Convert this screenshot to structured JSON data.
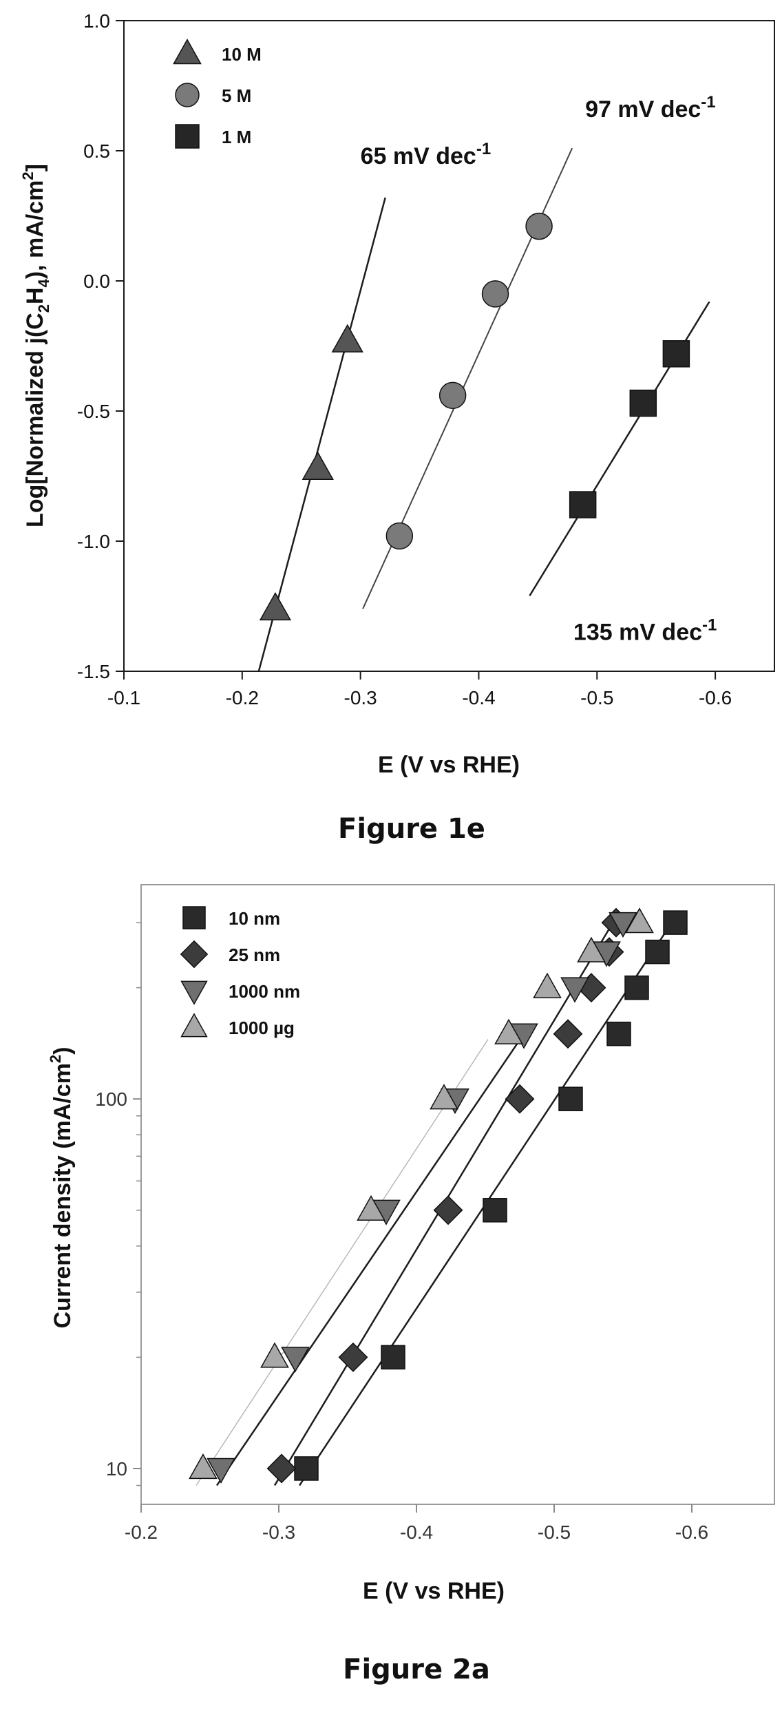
{
  "chart_data": [
    {
      "type": "scatter",
      "figure_caption": "Figure 1e",
      "xlabel": "E (V vs RHE)",
      "ylabel_prefix": "Log[Normalized j(C",
      "ylabel_sub1": "2",
      "ylabel_mid": "H",
      "ylabel_sub2": "4",
      "ylabel_suffix": "), mA/cm",
      "ylabel_sup": "2",
      "ylabel_end": "]",
      "xlim": [
        -0.1,
        -0.65
      ],
      "ylim": [
        -1.5,
        1.0
      ],
      "xticks": [
        -0.1,
        -0.2,
        -0.3,
        -0.4,
        -0.5,
        -0.6
      ],
      "xtick_labels": [
        "-0.1",
        "-0.2",
        "-0.3",
        "-0.4",
        "-0.5",
        "-0.6"
      ],
      "yticks": [
        1.0,
        0.5,
        0.0,
        -0.5,
        -1.0,
        -1.5
      ],
      "ytick_labels": [
        "1.0",
        "0.5",
        "0.0",
        "-0.5",
        "-1.0",
        "-1.5"
      ],
      "legend_position": "top-left",
      "grid": false,
      "series": [
        {
          "name": "10 M",
          "marker": "triangle-up",
          "color": "#555555",
          "x": [
            -0.228,
            -0.264,
            -0.289
          ],
          "y": [
            -1.26,
            -0.72,
            -0.23
          ],
          "fit_x": [
            -0.214,
            -0.321
          ],
          "fit_y": [
            -1.5,
            0.32
          ]
        },
        {
          "name": "5 M",
          "marker": "circle",
          "color": "#7a7a7a",
          "x": [
            -0.333,
            -0.378,
            -0.414,
            -0.451
          ],
          "y": [
            -0.98,
            -0.44,
            -0.05,
            0.21
          ],
          "fit_x": [
            -0.302,
            -0.479
          ],
          "fit_y": [
            -1.26,
            0.51
          ]
        },
        {
          "name": "1 M",
          "marker": "square",
          "color": "#262626",
          "x": [
            -0.488,
            -0.539,
            -0.567
          ],
          "y": [
            -0.86,
            -0.47,
            -0.28
          ],
          "fit_x": [
            -0.443,
            -0.595
          ],
          "fit_y": [
            -1.21,
            -0.08
          ]
        }
      ],
      "annotations": [
        {
          "label": "65 mV dec",
          "sup": "-1",
          "x": -0.3,
          "y": 0.45
        },
        {
          "label": "97 mV dec",
          "sup": "-1",
          "x": -0.49,
          "y": 0.63
        },
        {
          "label": "135 mV dec",
          "sup": "-1",
          "x": -0.48,
          "y": -1.38
        }
      ]
    },
    {
      "type": "scatter",
      "figure_caption": "Figure 2a",
      "xlabel": "E (V vs RHE)",
      "ylabel_prefix": "Current density (mA/cm",
      "ylabel_sup": "2",
      "ylabel_end": ")",
      "yscale": "log",
      "xlim": [
        -0.2,
        -0.66
      ],
      "ylim": [
        8,
        380
      ],
      "xticks": [
        -0.2,
        -0.3,
        -0.4,
        -0.5,
        -0.6
      ],
      "xtick_labels": [
        "-0.2",
        "-0.3",
        "-0.4",
        "-0.5",
        "-0.6"
      ],
      "yticks": [
        10,
        100
      ],
      "ytick_labels": [
        "10",
        "100"
      ],
      "legend_position": "top-left",
      "grid": false,
      "series": [
        {
          "name": "10 nm",
          "marker": "square",
          "color": "#2a2a2a",
          "x": [
            -0.32,
            -0.383,
            -0.457,
            -0.512,
            -0.547,
            -0.56,
            -0.575,
            -0.588
          ],
          "y": [
            10,
            20,
            50,
            100,
            150,
            200,
            250,
            300
          ],
          "fit_x": [
            -0.315,
            -0.588
          ],
          "fit_y": [
            9,
            310
          ]
        },
        {
          "name": "25 nm",
          "marker": "diamond",
          "color": "#3c3c3c",
          "x": [
            -0.302,
            -0.354,
            -0.423,
            -0.475,
            -0.51,
            -0.527,
            -0.54,
            -0.545
          ],
          "y": [
            10,
            20,
            50,
            100,
            150,
            200,
            250,
            300
          ],
          "fit_x": [
            -0.297,
            -0.545
          ],
          "fit_y": [
            9,
            310
          ]
        },
        {
          "name": "1000 nm",
          "marker": "triangle-down",
          "color": "#707070",
          "x": [
            -0.258,
            -0.312,
            -0.378,
            -0.428,
            -0.478,
            -0.515,
            -0.538,
            -0.55
          ],
          "y": [
            10,
            20,
            50,
            100,
            150,
            200,
            250,
            300
          ],
          "fit_x": [
            -0.255,
            -0.478
          ],
          "fit_y": [
            9,
            150
          ]
        },
        {
          "name": "1000 µg",
          "marker": "triangle-up",
          "color": "#a8a8a8",
          "x": [
            -0.245,
            -0.297,
            -0.367,
            -0.42,
            -0.467,
            -0.495,
            -0.527,
            -0.562
          ],
          "y": [
            10,
            20,
            50,
            100,
            150,
            200,
            250,
            300
          ],
          "fit_x": [
            -0.24,
            -0.452
          ],
          "fit_y": [
            9,
            145
          ]
        }
      ]
    }
  ]
}
